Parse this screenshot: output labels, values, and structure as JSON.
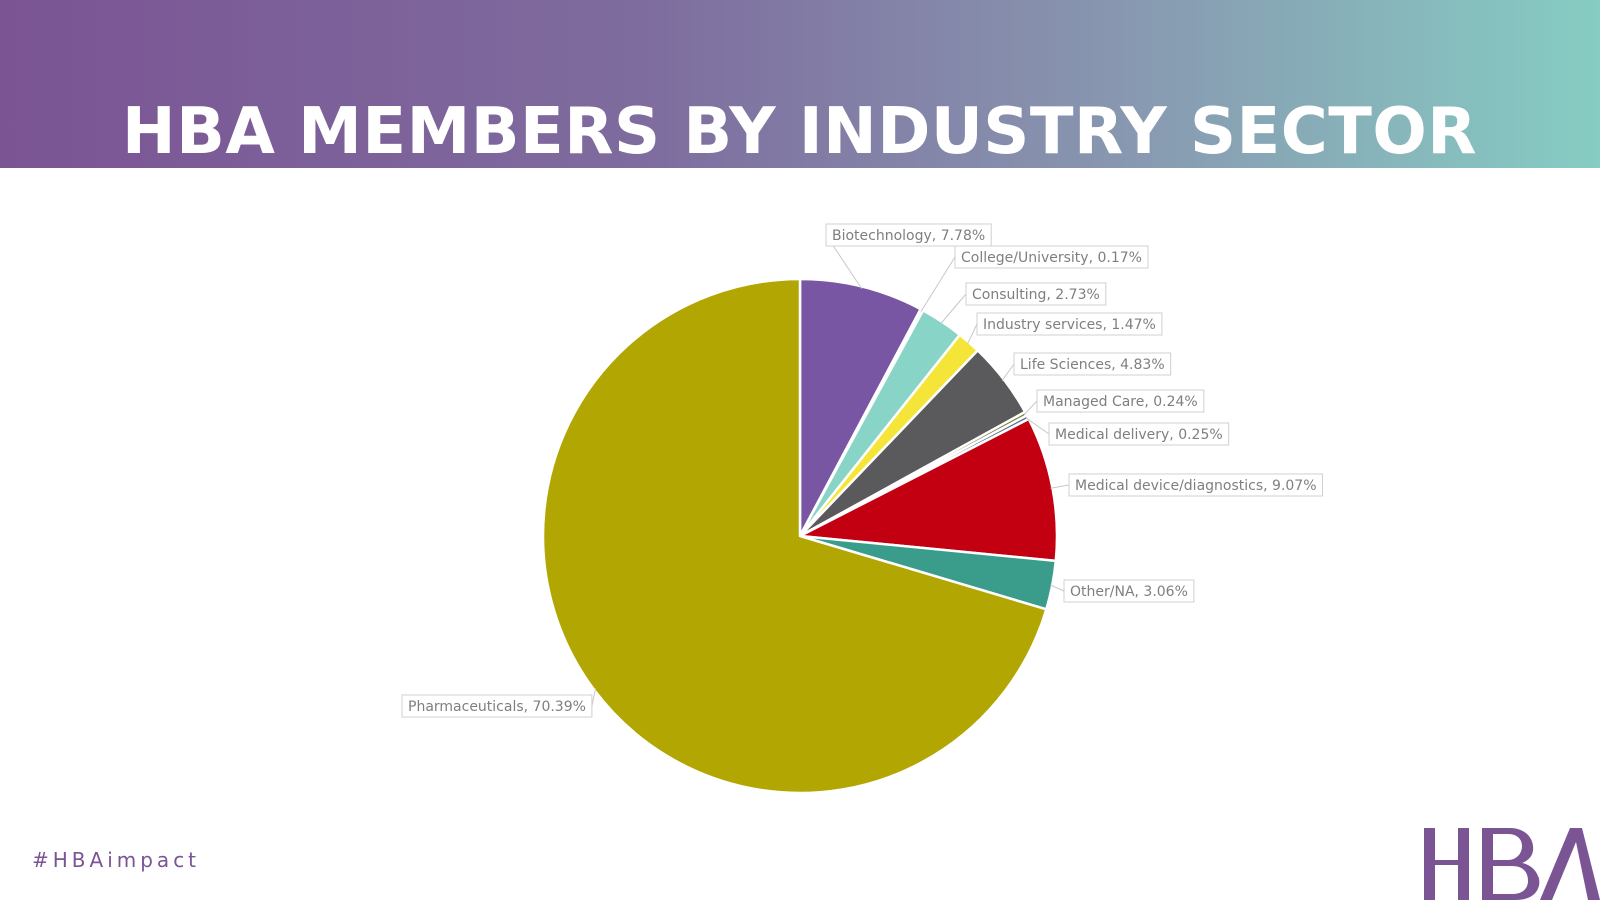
{
  "slide": {
    "title": "HBA MEMBERS BY INDUSTRY SECTOR",
    "hashtag": "#HBAimpact",
    "logo": "HBA"
  },
  "colors": {
    "header_start": "#7b5494",
    "header_end": "#86cdc3",
    "title": "#ffffff",
    "hashtag": "#7b5494",
    "logo": "#7b5494"
  },
  "chart_data": {
    "type": "pie",
    "title": "",
    "start_angle_deg": 0,
    "direction": "clockwise",
    "slices": [
      {
        "label": "Biotechnology",
        "value": 7.78,
        "display": "Biotechnology, 7.78%",
        "color": "#7856a4"
      },
      {
        "label": "College/University",
        "value": 0.17,
        "display": "College/University, 0.17%",
        "color": "#a1a1a1"
      },
      {
        "label": "Consulting",
        "value": 2.73,
        "display": "Consulting, 2.73%",
        "color": "#88d4c7"
      },
      {
        "label": "Industry services",
        "value": 1.47,
        "display": "Industry services, 1.47%",
        "color": "#f5e538"
      },
      {
        "label": "Life Sciences",
        "value": 4.83,
        "display": "Life Sciences, 4.83%",
        "color": "#5a5a5c"
      },
      {
        "label": "Managed Care",
        "value": 0.24,
        "display": "Managed Care, 0.24%",
        "color": "#7a7f3c"
      },
      {
        "label": "Medical delivery",
        "value": 0.25,
        "display": "Medical delivery, 0.25%",
        "color": "#4f6f96"
      },
      {
        "label": "Medical device/diagnostics",
        "value": 9.07,
        "display": "Medical device/diagnostics, 9.07%",
        "color": "#c20011"
      },
      {
        "label": "Other/NA",
        "value": 3.06,
        "display": "Other/NA, 3.06%",
        "color": "#3a9d8c"
      },
      {
        "label": "Pharmaceuticals",
        "value": 70.39,
        "display": "Pharmaceuticals, 70.39%",
        "color": "#b2a603"
      }
    ]
  }
}
